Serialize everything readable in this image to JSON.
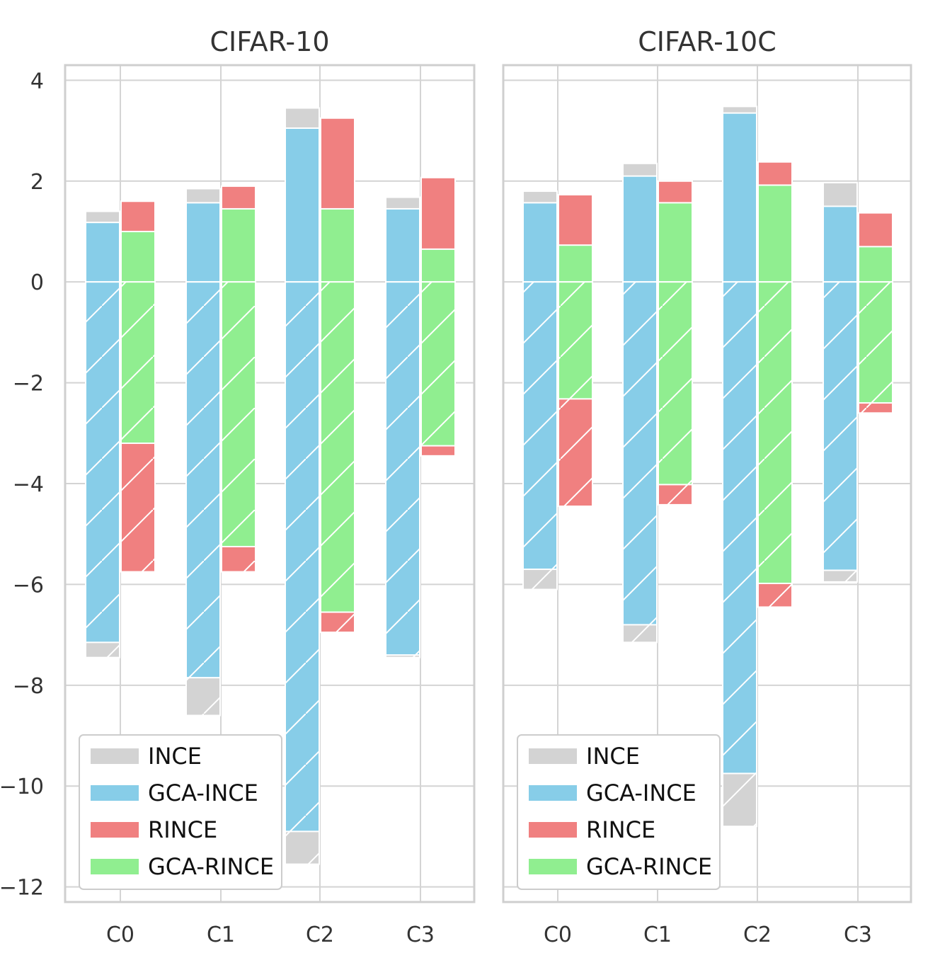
{
  "chart_data": {
    "type": "bar",
    "stacked_overlap": true,
    "ylim": [
      -12.3,
      4.3
    ],
    "yticks": [
      4,
      2,
      0,
      -2,
      -4,
      -6,
      -8,
      -10,
      -12
    ],
    "ytick_labels": [
      "4",
      "2",
      "0",
      "−2",
      "−4",
      "−6",
      "−8",
      "−10",
      "−12"
    ],
    "categories": [
      "C0",
      "C1",
      "C2",
      "C3"
    ],
    "colors": {
      "INCE": "#d3d3d3",
      "GCA-INCE": "#87cde8",
      "RINCE": "#f08080",
      "GCA-RINCE": "#90ee90"
    },
    "legend": [
      "INCE",
      "GCA-INCE",
      "RINCE",
      "GCA-RINCE"
    ],
    "legend_position": "lower-left",
    "hatch_below_zero": true,
    "panels": [
      {
        "title": "CIFAR-10",
        "series": [
          {
            "name": "INCE",
            "pos": [
              1.4,
              1.85,
              3.45,
              1.68
            ],
            "neg": [
              -7.45,
              -8.6,
              -11.55,
              -7.45
            ]
          },
          {
            "name": "GCA-INCE",
            "pos": [
              1.18,
              1.57,
              3.05,
              1.45
            ],
            "neg": [
              -7.15,
              -7.85,
              -10.9,
              -7.4
            ]
          },
          {
            "name": "RINCE",
            "pos": [
              1.6,
              1.9,
              3.25,
              2.07
            ],
            "neg": [
              -5.75,
              -5.75,
              -6.95,
              -3.45
            ]
          },
          {
            "name": "GCA-RINCE",
            "pos": [
              1.0,
              1.45,
              1.45,
              0.65
            ],
            "neg": [
              -3.2,
              -5.25,
              -6.55,
              -3.25
            ]
          }
        ]
      },
      {
        "title": "CIFAR-10C",
        "series": [
          {
            "name": "INCE",
            "pos": [
              1.8,
              2.35,
              3.48,
              1.97
            ],
            "neg": [
              -6.1,
              -7.15,
              -10.8,
              -5.95
            ]
          },
          {
            "name": "GCA-INCE",
            "pos": [
              1.57,
              2.1,
              3.35,
              1.5
            ],
            "neg": [
              -5.7,
              -6.8,
              -9.75,
              -5.72
            ]
          },
          {
            "name": "RINCE",
            "pos": [
              1.73,
              2.0,
              2.38,
              1.37
            ],
            "neg": [
              -4.45,
              -4.42,
              -6.45,
              -2.6
            ]
          },
          {
            "name": "GCA-RINCE",
            "pos": [
              0.73,
              1.57,
              1.92,
              0.7
            ],
            "neg": [
              -2.32,
              -4.02,
              -5.98,
              -2.4
            ]
          }
        ]
      }
    ]
  }
}
